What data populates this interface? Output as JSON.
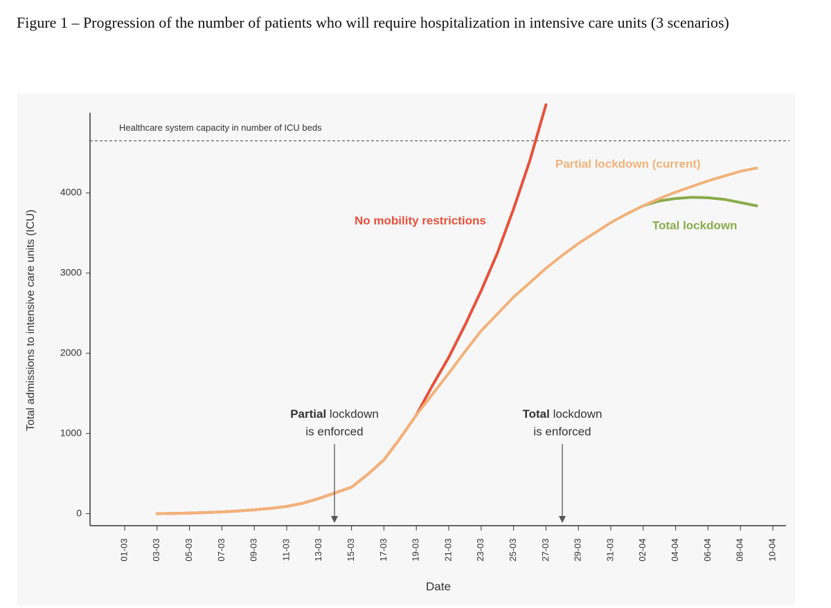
{
  "caption": "Figure 1 – Progression of the number of patients who will require hospitalization in intensive care units (3 scenarios)",
  "chart_data": {
    "type": "line",
    "x_label": "Date",
    "y_label": "Total admissions to intensive care units (ICU)",
    "categories": [
      "01-03",
      null,
      "03-03",
      null,
      "05-03",
      null,
      "07-03",
      null,
      "09-03",
      null,
      "11-03",
      null,
      "13-03",
      null,
      "15-03",
      null,
      "17-03",
      null,
      "19-03",
      null,
      "21-03",
      null,
      "23-03",
      null,
      "25-03",
      null,
      "27-03",
      null,
      "29-03",
      null,
      "31-03",
      null,
      "02-04",
      null,
      "04-04",
      null,
      "06-04",
      null,
      "08-04",
      null,
      "10-04"
    ],
    "ylim": [
      -150,
      5000
    ],
    "yticks": [
      0,
      1000,
      2000,
      3000,
      4000
    ],
    "capacity": 4650,
    "capacity_label": "Healthcare system capacity in number of ICU beds",
    "series": [
      {
        "name": "Partial lockdown (current)",
        "color": "#f2b27a",
        "values": [
          null,
          null,
          0,
          3,
          8,
          14,
          22,
          33,
          48,
          66,
          90,
          130,
          190,
          260,
          330,
          490,
          670,
          940,
          1230,
          1490,
          1750,
          2020,
          2280,
          2490,
          2700,
          2880,
          3060,
          3220,
          3370,
          3500,
          3630,
          3740,
          3840,
          3930,
          4010,
          4080,
          4150,
          4210,
          4270,
          4310,
          null
        ]
      },
      {
        "name": "Total lockdown",
        "color": "#8aab4a",
        "values": [
          null,
          null,
          null,
          null,
          null,
          null,
          null,
          null,
          null,
          null,
          null,
          null,
          null,
          null,
          null,
          null,
          null,
          null,
          null,
          null,
          null,
          null,
          null,
          null,
          null,
          null,
          null,
          null,
          null,
          null,
          null,
          3740,
          3840,
          3900,
          3930,
          3945,
          3940,
          3920,
          3880,
          3840,
          null
        ]
      },
      {
        "name": "No mobility restrictions",
        "color": "#e8503a",
        "values": [
          null,
          null,
          0,
          3,
          8,
          14,
          22,
          33,
          48,
          66,
          90,
          130,
          190,
          260,
          330,
          490,
          670,
          940,
          1230,
          1600,
          1950,
          2350,
          2780,
          3250,
          3800,
          4400,
          5100,
          null,
          null,
          null,
          null,
          null,
          null,
          null,
          null,
          null,
          null,
          null,
          null,
          null,
          null
        ]
      }
    ],
    "annotations": [
      {
        "bold": "Partial",
        "text": "lockdown",
        "line2": "is enforced"
      },
      {
        "bold": "Total",
        "text": "lockdown",
        "line2": "is enforced"
      }
    ]
  }
}
